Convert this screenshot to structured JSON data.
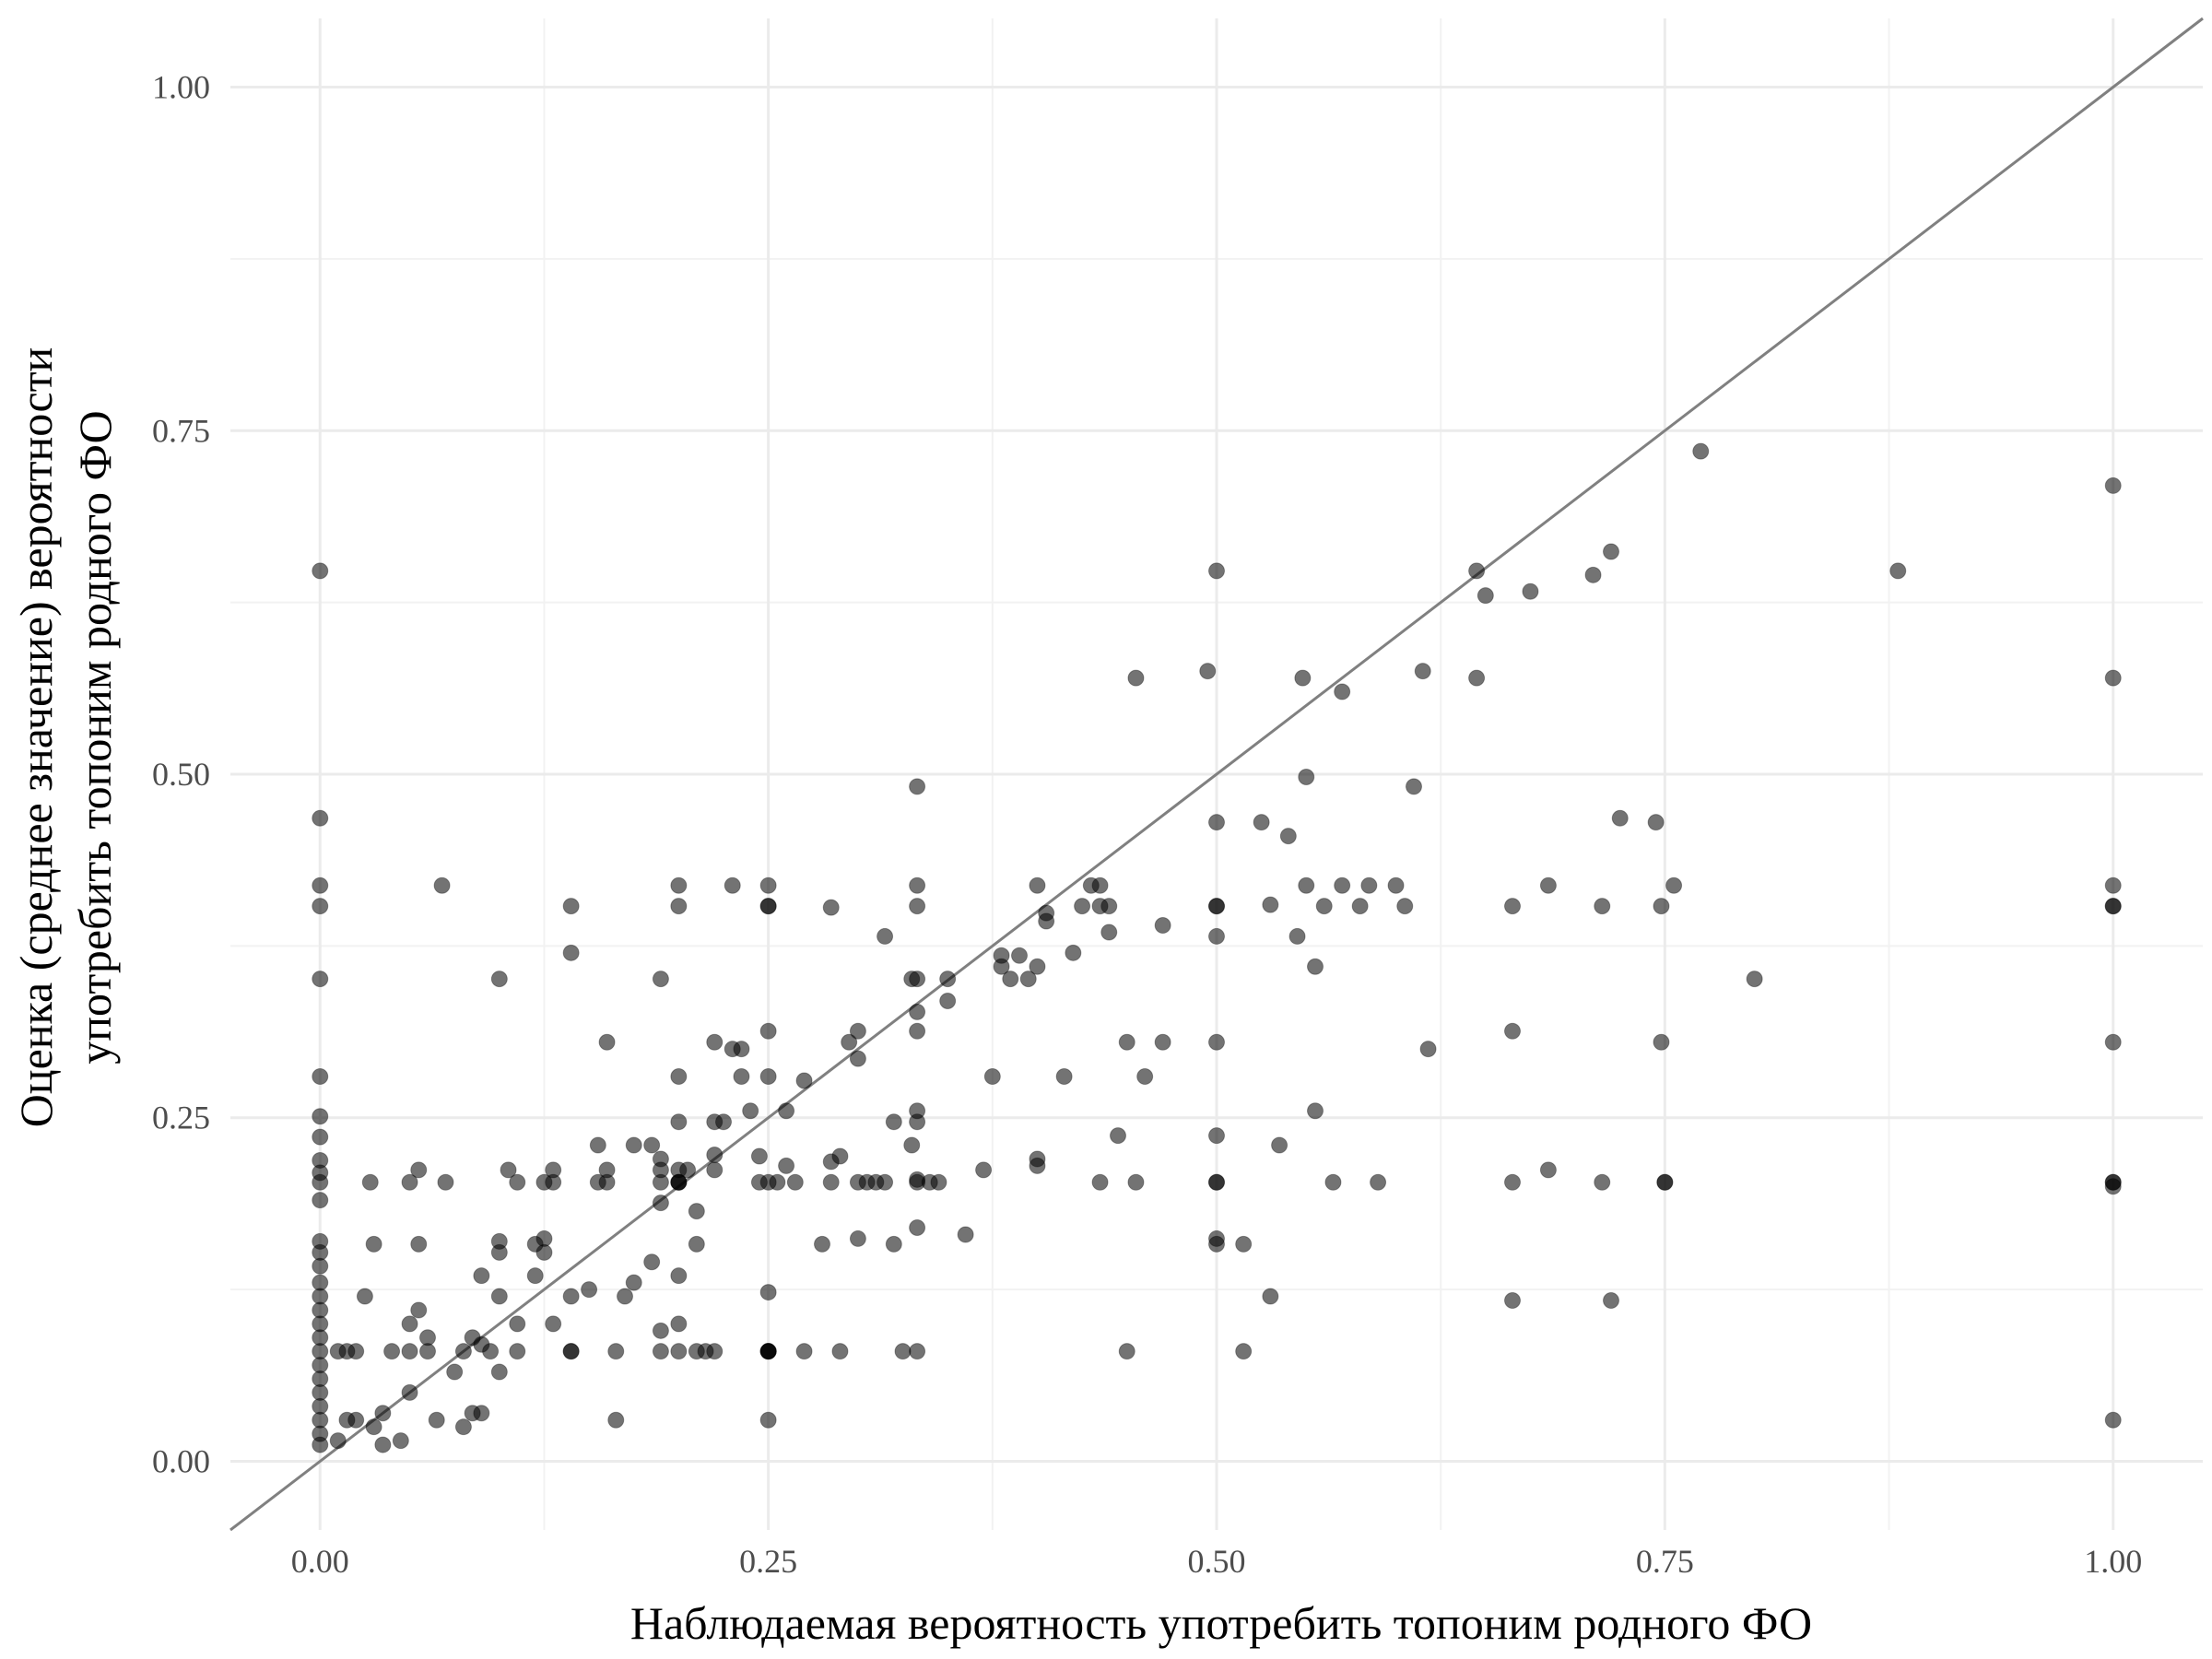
{
  "chart_data": {
    "type": "scatter",
    "xlabel": "Наблюдаемая вероятность употребить топоним родного ФО",
    "ylabel_lines": [
      "Оценка (среднее значение) вероятности",
      "употребить топоним родного ФО"
    ],
    "xlim": [
      -0.05,
      1.05
    ],
    "ylim": [
      -0.05,
      1.05
    ],
    "x_ticks": [
      0.0,
      0.25,
      0.5,
      0.75,
      1.0
    ],
    "x_tick_labels": [
      "0.00",
      "0.25",
      "0.50",
      "0.75",
      "1.00"
    ],
    "y_ticks": [
      0.0,
      0.25,
      0.5,
      0.75,
      1.0
    ],
    "y_tick_labels": [
      "0.00",
      "0.25",
      "0.50",
      "0.75",
      "1.00"
    ],
    "grid": true,
    "reference_line": {
      "type": "identity",
      "color": "#808080"
    },
    "point_color": "#000000",
    "point_opacity": 0.55,
    "points": [
      [
        0,
        0.648
      ],
      [
        0,
        0.468
      ],
      [
        0,
        0.419
      ],
      [
        0,
        0.404
      ],
      [
        0,
        0.351
      ],
      [
        0,
        0.28
      ],
      [
        0,
        0.251
      ],
      [
        0,
        0.236
      ],
      [
        0,
        0.219
      ],
      [
        0,
        0.21
      ],
      [
        0,
        0.203
      ],
      [
        0,
        0.19
      ],
      [
        0,
        0.16
      ],
      [
        0,
        0.152
      ],
      [
        0,
        0.142
      ],
      [
        0,
        0.13
      ],
      [
        0,
        0.12
      ],
      [
        0,
        0.11
      ],
      [
        0,
        0.1
      ],
      [
        0,
        0.09
      ],
      [
        0,
        0.08
      ],
      [
        0,
        0.07
      ],
      [
        0,
        0.06
      ],
      [
        0,
        0.05
      ],
      [
        0,
        0.04
      ],
      [
        0,
        0.03
      ],
      [
        0,
        0.02
      ],
      [
        0,
        0.012
      ],
      [
        0.01,
        0.08
      ],
      [
        0.015,
        0.08
      ],
      [
        0.02,
        0.08
      ],
      [
        0.01,
        0.015
      ],
      [
        0.015,
        0.03
      ],
      [
        0.02,
        0.03
      ],
      [
        0.025,
        0.12
      ],
      [
        0.028,
        0.203
      ],
      [
        0.03,
        0.158
      ],
      [
        0.03,
        0.025
      ],
      [
        0.035,
        0.035
      ],
      [
        0.04,
        0.08
      ],
      [
        0.035,
        0.012
      ],
      [
        0.045,
        0.015
      ],
      [
        0.05,
        0.1
      ],
      [
        0.05,
        0.05
      ],
      [
        0.05,
        0.08
      ],
      [
        0.055,
        0.11
      ],
      [
        0.05,
        0.203
      ],
      [
        0.06,
        0.09
      ],
      [
        0.06,
        0.08
      ],
      [
        0.055,
        0.158
      ],
      [
        0.055,
        0.212
      ],
      [
        0.065,
        0.03
      ],
      [
        0.07,
        0.203
      ],
      [
        0.068,
        0.419
      ],
      [
        0.075,
        0.065
      ],
      [
        0.08,
        0.08
      ],
      [
        0.085,
        0.09
      ],
      [
        0.08,
        0.025
      ],
      [
        0.085,
        0.035
      ],
      [
        0.09,
        0.135
      ],
      [
        0.09,
        0.085
      ],
      [
        0.095,
        0.08
      ],
      [
        0.1,
        0.065
      ],
      [
        0.09,
        0.035
      ],
      [
        0.1,
        0.16
      ],
      [
        0.1,
        0.152
      ],
      [
        0.1,
        0.12
      ],
      [
        0.1,
        0.351
      ],
      [
        0.105,
        0.212
      ],
      [
        0.11,
        0.1
      ],
      [
        0.11,
        0.203
      ],
      [
        0.11,
        0.08
      ],
      [
        0.12,
        0.158
      ],
      [
        0.12,
        0.135
      ],
      [
        0.125,
        0.162
      ],
      [
        0.125,
        0.152
      ],
      [
        0.125,
        0.203
      ],
      [
        0.13,
        0.1
      ],
      [
        0.13,
        0.203
      ],
      [
        0.13,
        0.212
      ],
      [
        0.14,
        0.12
      ],
      [
        0.14,
        0.08
      ],
      [
        0.14,
        0.37
      ],
      [
        0.14,
        0.404
      ],
      [
        0.14,
        0.08
      ],
      [
        0.15,
        0.125
      ],
      [
        0.155,
        0.23
      ],
      [
        0.155,
        0.203
      ],
      [
        0.16,
        0.203
      ],
      [
        0.16,
        0.212
      ],
      [
        0.16,
        0.305
      ],
      [
        0.165,
        0.08
      ],
      [
        0.165,
        0.03
      ],
      [
        0.17,
        0.12
      ],
      [
        0.175,
        0.23
      ],
      [
        0.175,
        0.13
      ],
      [
        0.185,
        0.145
      ],
      [
        0.185,
        0.23
      ],
      [
        0.19,
        0.203
      ],
      [
        0.19,
        0.212
      ],
      [
        0.19,
        0.22
      ],
      [
        0.19,
        0.188
      ],
      [
        0.19,
        0.08
      ],
      [
        0.19,
        0.095
      ],
      [
        0.19,
        0.351
      ],
      [
        0.2,
        0.203
      ],
      [
        0.2,
        0.203
      ],
      [
        0.21,
        0.08
      ],
      [
        0.22,
        0.08
      ],
      [
        0.22,
        0.223
      ],
      [
        0.22,
        0.212
      ],
      [
        0.23,
        0.3
      ],
      [
        0.25,
        0.08
      ],
      [
        0.25,
        0.08
      ],
      [
        0.25,
        0.08
      ],
      [
        0.25,
        0.08
      ],
      [
        0.2,
        0.419
      ],
      [
        0.2,
        0.404
      ],
      [
        0.2,
        0.28
      ],
      [
        0.2,
        0.247
      ],
      [
        0.2,
        0.203
      ],
      [
        0.2,
        0.212
      ],
      [
        0.2,
        0.135
      ],
      [
        0.2,
        0.1
      ],
      [
        0.2,
        0.08
      ],
      [
        0.205,
        0.212
      ],
      [
        0.21,
        0.182
      ],
      [
        0.21,
        0.158
      ],
      [
        0.215,
        0.08
      ],
      [
        0.22,
        0.305
      ],
      [
        0.22,
        0.247
      ],
      [
        0.225,
        0.247
      ],
      [
        0.23,
        0.419
      ],
      [
        0.235,
        0.28
      ],
      [
        0.235,
        0.3
      ],
      [
        0.24,
        0.255
      ],
      [
        0.245,
        0.222
      ],
      [
        0.245,
        0.203
      ],
      [
        0.25,
        0.419
      ],
      [
        0.25,
        0.404
      ],
      [
        0.25,
        0.404
      ],
      [
        0.25,
        0.313
      ],
      [
        0.25,
        0.28
      ],
      [
        0.25,
        0.203
      ],
      [
        0.25,
        0.123
      ],
      [
        0.25,
        0.03
      ],
      [
        0.255,
        0.203
      ],
      [
        0.26,
        0.255
      ],
      [
        0.26,
        0.215
      ],
      [
        0.265,
        0.203
      ],
      [
        0.27,
        0.08
      ],
      [
        0.27,
        0.277
      ],
      [
        0.28,
        0.158
      ],
      [
        0.285,
        0.218
      ],
      [
        0.285,
        0.203
      ],
      [
        0.285,
        0.403
      ],
      [
        0.29,
        0.222
      ],
      [
        0.29,
        0.08
      ],
      [
        0.295,
        0.305
      ],
      [
        0.3,
        0.293
      ],
      [
        0.3,
        0.313
      ],
      [
        0.3,
        0.203
      ],
      [
        0.3,
        0.162
      ],
      [
        0.305,
        0.203
      ],
      [
        0.31,
        0.203
      ],
      [
        0.315,
        0.203
      ],
      [
        0.315,
        0.382
      ],
      [
        0.32,
        0.247
      ],
      [
        0.32,
        0.158
      ],
      [
        0.325,
        0.08
      ],
      [
        0.33,
        0.351
      ],
      [
        0.33,
        0.23
      ],
      [
        0.333,
        0.491
      ],
      [
        0.333,
        0.419
      ],
      [
        0.333,
        0.404
      ],
      [
        0.333,
        0.351
      ],
      [
        0.333,
        0.327
      ],
      [
        0.333,
        0.313
      ],
      [
        0.333,
        0.255
      ],
      [
        0.333,
        0.247
      ],
      [
        0.333,
        0.203
      ],
      [
        0.333,
        0.205
      ],
      [
        0.333,
        0.17
      ],
      [
        0.333,
        0.08
      ],
      [
        0.34,
        0.203
      ],
      [
        0.345,
        0.203
      ],
      [
        0.35,
        0.335
      ],
      [
        0.35,
        0.351
      ],
      [
        0.36,
        0.165
      ],
      [
        0.37,
        0.212
      ],
      [
        0.375,
        0.28
      ],
      [
        0.38,
        0.368
      ],
      [
        0.38,
        0.36
      ],
      [
        0.385,
        0.351
      ],
      [
        0.39,
        0.368
      ],
      [
        0.395,
        0.351
      ],
      [
        0.4,
        0.419
      ],
      [
        0.4,
        0.36
      ],
      [
        0.4,
        0.22
      ],
      [
        0.4,
        0.215
      ],
      [
        0.405,
        0.393
      ],
      [
        0.405,
        0.399
      ],
      [
        0.415,
        0.28
      ],
      [
        0.42,
        0.37
      ],
      [
        0.425,
        0.404
      ],
      [
        0.43,
        0.419
      ],
      [
        0.435,
        0.419
      ],
      [
        0.435,
        0.404
      ],
      [
        0.435,
        0.203
      ],
      [
        0.44,
        0.385
      ],
      [
        0.44,
        0.404
      ],
      [
        0.445,
        0.237
      ],
      [
        0.45,
        0.08
      ],
      [
        0.45,
        0.305
      ],
      [
        0.455,
        0.57
      ],
      [
        0.455,
        0.203
      ],
      [
        0.46,
        0.28
      ],
      [
        0.47,
        0.39
      ],
      [
        0.47,
        0.305
      ],
      [
        0.495,
        0.575
      ],
      [
        0.5,
        0.648
      ],
      [
        0.5,
        0.465
      ],
      [
        0.5,
        0.404
      ],
      [
        0.5,
        0.404
      ],
      [
        0.5,
        0.382
      ],
      [
        0.5,
        0.305
      ],
      [
        0.5,
        0.237
      ],
      [
        0.5,
        0.203
      ],
      [
        0.5,
        0.203
      ],
      [
        0.5,
        0.162
      ],
      [
        0.5,
        0.158
      ],
      [
        0.515,
        0.158
      ],
      [
        0.515,
        0.08
      ],
      [
        0.525,
        0.465
      ],
      [
        0.53,
        0.405
      ],
      [
        0.53,
        0.12
      ],
      [
        0.535,
        0.23
      ],
      [
        0.54,
        0.455
      ],
      [
        0.545,
        0.382
      ],
      [
        0.548,
        0.57
      ],
      [
        0.55,
        0.498
      ],
      [
        0.55,
        0.419
      ],
      [
        0.555,
        0.36
      ],
      [
        0.555,
        0.255
      ],
      [
        0.56,
        0.404
      ],
      [
        0.565,
        0.203
      ],
      [
        0.57,
        0.56
      ],
      [
        0.57,
        0.419
      ],
      [
        0.58,
        0.404
      ],
      [
        0.585,
        0.419
      ],
      [
        0.59,
        0.203
      ],
      [
        0.6,
        0.419
      ],
      [
        0.605,
        0.404
      ],
      [
        0.61,
        0.491
      ],
      [
        0.615,
        0.575
      ],
      [
        0.618,
        0.3
      ],
      [
        0.645,
        0.648
      ],
      [
        0.645,
        0.57
      ],
      [
        0.65,
        0.63
      ],
      [
        0.665,
        0.404
      ],
      [
        0.665,
        0.313
      ],
      [
        0.665,
        0.203
      ],
      [
        0.665,
        0.117
      ],
      [
        0.675,
        0.633
      ],
      [
        0.685,
        0.419
      ],
      [
        0.685,
        0.212
      ],
      [
        0.71,
        0.645
      ],
      [
        0.715,
        0.404
      ],
      [
        0.715,
        0.203
      ],
      [
        0.72,
        0.662
      ],
      [
        0.72,
        0.117
      ],
      [
        0.725,
        0.468
      ],
      [
        0.745,
        0.465
      ],
      [
        0.748,
        0.404
      ],
      [
        0.748,
        0.305
      ],
      [
        0.75,
        0.203
      ],
      [
        0.75,
        0.203
      ],
      [
        0.755,
        0.419
      ],
      [
        0.77,
        0.735
      ],
      [
        0.8,
        0.351
      ],
      [
        0.88,
        0.648
      ],
      [
        1.0,
        0.71
      ],
      [
        1.0,
        0.57
      ],
      [
        1.0,
        0.419
      ],
      [
        1.0,
        0.404
      ],
      [
        1.0,
        0.404
      ],
      [
        1.0,
        0.305
      ],
      [
        1.0,
        0.203
      ],
      [
        1.0,
        0.203
      ],
      [
        1.0,
        0.2
      ],
      [
        1.0,
        0.03
      ]
    ]
  }
}
